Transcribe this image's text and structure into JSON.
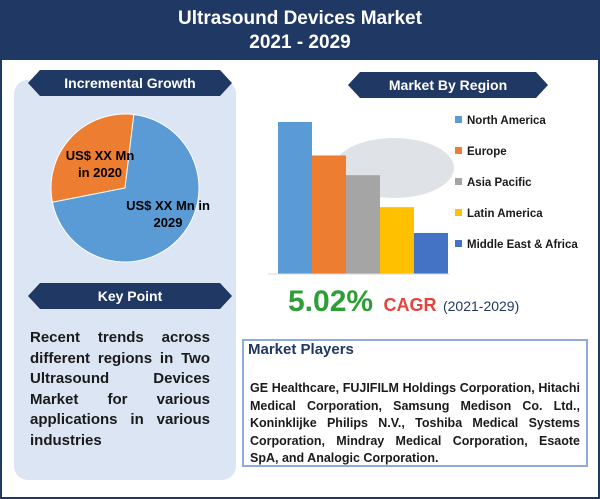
{
  "header": {
    "title_line1": "Ultrasound Devices Market",
    "title_line2": "2021 - 2029"
  },
  "incremental_growth": {
    "label": "Incremental Growth",
    "slice_2020": "US$ XX Mn in 2020",
    "slice_2029": "US$ XX Mn in 2029",
    "colors": {
      "slice_2020": "#ed7d31",
      "slice_2029": "#5b9bd5"
    }
  },
  "key_point": {
    "label": "Key Point",
    "text": "Recent trends across different regions in Two Ultrasound Devices Market for various applications in various industries"
  },
  "market_by_region": {
    "label": "Market By Region"
  },
  "cagr": {
    "value": "5.02%",
    "label": "CAGR",
    "period": "(2021-2029)"
  },
  "market_players": {
    "title": "Market Players",
    "text": "GE Healthcare, FUJIFILM Holdings Corporation, Hitachi Medical Corporation, Samsung Medison Co. Ltd., Koninklijke Philips N.V., Toshiba Medical Systems Corporation, Mindray Medical Corporation, Esaote SpA, and Analogic Corporation."
  },
  "chart_data": [
    {
      "type": "pie",
      "categories": [
        "US$ XX Mn in 2020",
        "US$ XX Mn in 2029"
      ],
      "values": [
        30,
        70
      ],
      "colors": [
        "#ed7d31",
        "#5b9bd5"
      ]
    },
    {
      "type": "bar",
      "categories": [
        "North America",
        "Europe",
        "Asia Pacific",
        "Latin America",
        "Middle East & Africa"
      ],
      "values": [
        100,
        78,
        65,
        44,
        27
      ],
      "ylim": [
        0,
        100
      ],
      "colors": [
        "#5b9bd5",
        "#ed7d31",
        "#a5a5a5",
        "#ffc000",
        "#4472c4"
      ],
      "legend": "right",
      "grid": false
    }
  ]
}
